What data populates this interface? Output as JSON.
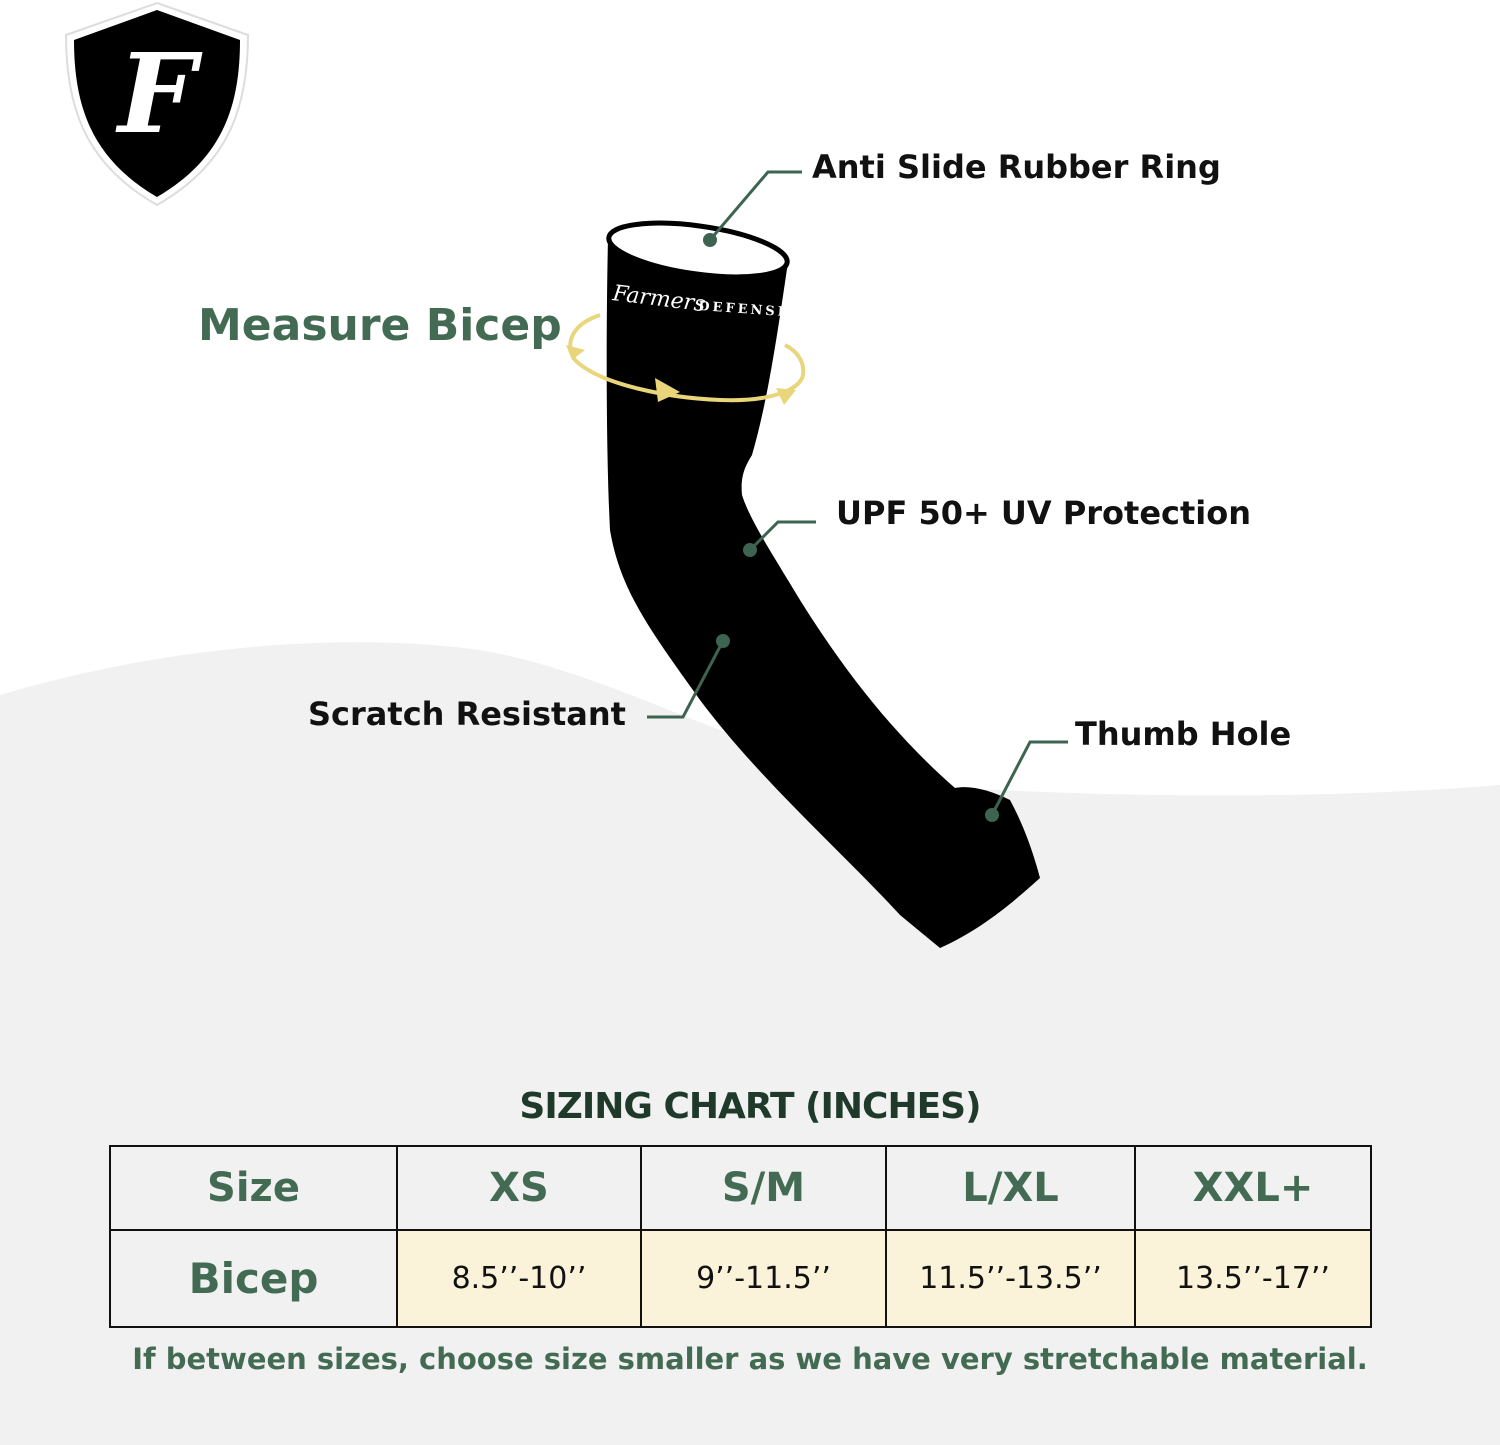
{
  "logo": {
    "letter": "F",
    "brand": "Farmers Defense"
  },
  "sleeve": {
    "print_script": "Farmers",
    "print_caps": "DEFENSE"
  },
  "measure_label": "Measure Bicep",
  "callouts": {
    "ring": "Anti Slide Rubber Ring",
    "upf": "UPF 50+ UV Protection",
    "scratch": "Scratch Resistant",
    "thumb": "Thumb Hole"
  },
  "sizing": {
    "title": "SIZING CHART (INCHES)",
    "header": [
      "Size",
      "XS",
      "S/M",
      "L/XL",
      "XXL+"
    ],
    "row": [
      "Bicep",
      "8.5’’-10’’",
      "9’’-11.5’’",
      "11.5’’-13.5’’",
      "13.5’’-17’’"
    ],
    "note": "If between sizes, choose size smaller as we have very stretchable material."
  },
  "colors": {
    "accent_green": "#436b53",
    "title_green": "#1f3a2a",
    "cell_yellow": "#faf3d9",
    "arrow_yellow": "#e9d57a",
    "background_gray": "#f1f1f1"
  }
}
